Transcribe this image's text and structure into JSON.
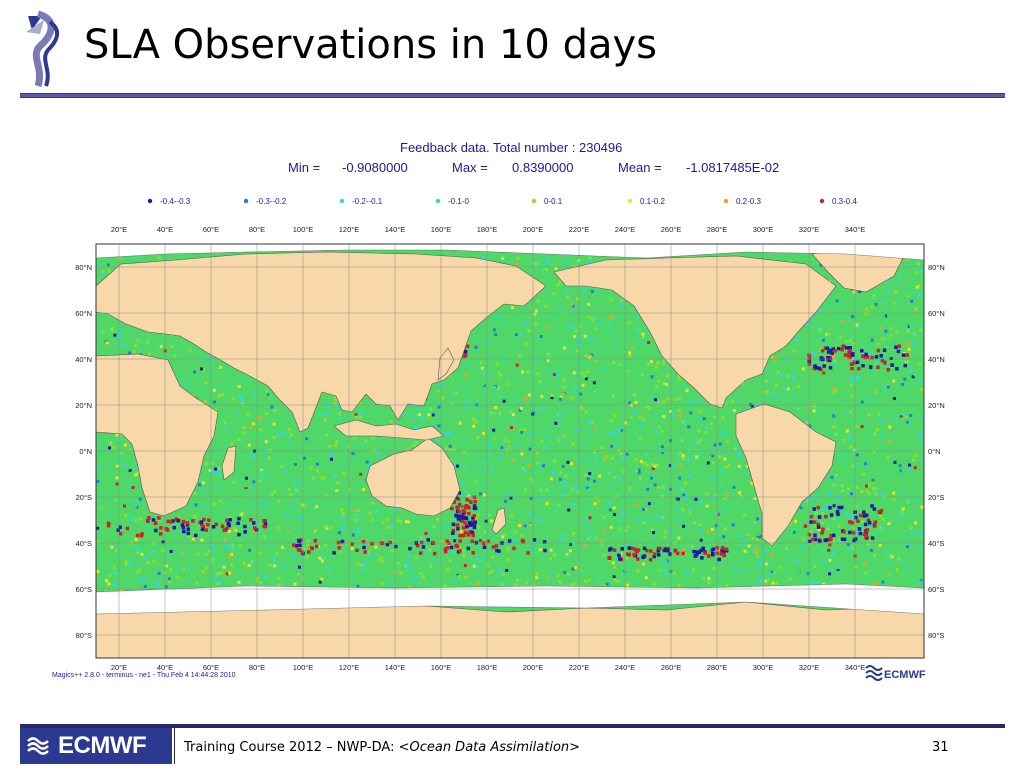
{
  "slide": {
    "title": "SLA Observations in 10 days",
    "footer_prefix": "Training Course 2012 – NWP-DA: <",
    "footer_italic": "Ocean Data Assimilation",
    "footer_suffix": ">",
    "page_number": "31",
    "footer_logo": "ECMWF"
  },
  "figure": {
    "title_line1": "Feedback data. Total number :   230496",
    "min_label": "Min =",
    "min_value": "-0.9080000",
    "max_label": "Max =",
    "max_value": "0.8390000",
    "mean_label": "Mean =",
    "mean_value": "-1.0817485E-02",
    "credit": "Magics++ 2.8.0 - terminus - ne1 - Thu Feb  4 14:44:28 2010",
    "brand": "ECMWF",
    "legend": [
      {
        "label": "-0.4--0.3",
        "color": "#1a1aa8"
      },
      {
        "label": "-0.3--0.2",
        "color": "#1e7fd6"
      },
      {
        "label": "-0.2--0.1",
        "color": "#33d6e6"
      },
      {
        "label": "-0.1-0",
        "color": "#3fe07a"
      },
      {
        "label": "0-0.1",
        "color": "#8ee02c"
      },
      {
        "label": "0.1-0.2",
        "color": "#e8e628"
      },
      {
        "label": "0.2-0.3",
        "color": "#f2a024"
      },
      {
        "label": "0.3-0.4",
        "color": "#d81e1e"
      }
    ],
    "lon_labels": [
      "20°E",
      "40°E",
      "60°E",
      "80°E",
      "100°E",
      "120°E",
      "140°E",
      "160°E",
      "180°E",
      "200°E",
      "220°E",
      "240°E",
      "260°E",
      "280°E",
      "300°E",
      "320°E",
      "340°E"
    ],
    "lat_labels": [
      "80°N",
      "60°N",
      "40°N",
      "20°N",
      "0°N",
      "20°S",
      "40°S",
      "60°S",
      "80°S"
    ],
    "colors": {
      "land": "#f8d8a8",
      "ocean_base": "#4fd868",
      "grid": "#777777",
      "text": "#1a1aa0"
    }
  }
}
